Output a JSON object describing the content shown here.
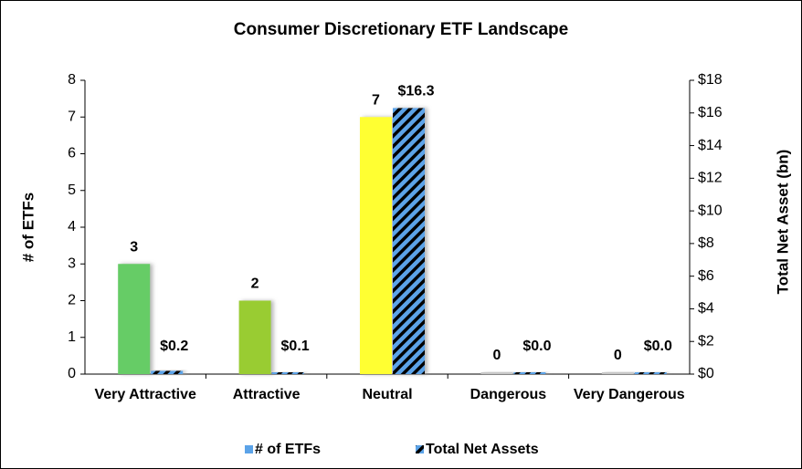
{
  "chart_data": {
    "type": "bar",
    "title": "Consumer Discretionary ETF Landscape",
    "categories": [
      "Very Attractive",
      "Attractive",
      "Neutral",
      "Dangerous",
      "Very Dangerous"
    ],
    "series": [
      {
        "name": "# of ETFs",
        "color": "#5ba3e8",
        "colors": [
          "#66cc66",
          "#99cc33",
          "#ffff33",
          "#c8c8c8",
          "#c8c8c8"
        ],
        "values": [
          3,
          2,
          7,
          0,
          0
        ]
      },
      {
        "name": "Total Net Assets",
        "color": "#5ba3e8",
        "axis": "y2",
        "values": [
          0.2,
          0.1,
          16.3,
          0,
          0
        ],
        "value_labels": [
          "$0.2",
          "$0.1",
          "$16.3",
          "$0.0",
          "$0.0"
        ]
      }
    ],
    "ylabel": "# of ETFs",
    "y2label": "Total Net Asset (bn)",
    "ylim": [
      0,
      8
    ],
    "yticks": [
      0,
      1,
      2,
      3,
      4,
      5,
      6,
      7,
      8
    ],
    "y2lim": [
      0,
      18
    ],
    "y2ticks": [
      {
        "value": 0,
        "label": "$0"
      },
      {
        "value": 2,
        "label": "$2"
      },
      {
        "value": 4,
        "label": "$4"
      },
      {
        "value": 6,
        "label": "$6"
      },
      {
        "value": 8,
        "label": "$8"
      },
      {
        "value": 10,
        "label": "$10"
      },
      {
        "value": 12,
        "label": "$12"
      },
      {
        "value": 14,
        "label": "$14"
      },
      {
        "value": 16,
        "label": "$16"
      },
      {
        "value": 18,
        "label": "$18"
      }
    ],
    "grid": false,
    "legend": "bottom"
  }
}
